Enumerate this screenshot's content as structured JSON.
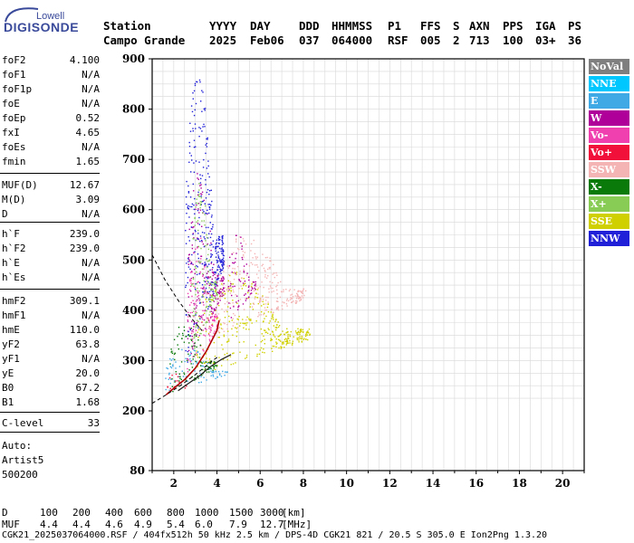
{
  "header": {
    "logo_top": "Lowell",
    "logo_main": "DIGISONDE",
    "labels": {
      "station": "Station",
      "year": "YYYY",
      "day": "DAY",
      "doy": "DDD",
      "time": "HHMMSS",
      "p1": "P1",
      "ffs": "FFS",
      "s": "S",
      "axn": "AXN",
      "pps": "PPS",
      "iga": "IGA",
      "ps": "PS"
    },
    "values": {
      "station": "Campo Grande",
      "year": "2025",
      "day": "Feb06",
      "doy": "037",
      "time": "064000",
      "p1": "RSF",
      "ffs": "005",
      "s": "2",
      "axn": "713",
      "pps": "100",
      "iga": "03+",
      "ps": "36"
    }
  },
  "params": [
    {
      "k": "foF2",
      "v": "4.100"
    },
    {
      "k": "foF1",
      "v": "N/A"
    },
    {
      "k": "foF1p",
      "v": "N/A"
    },
    {
      "k": "foE",
      "v": "N/A"
    },
    {
      "k": "foEp",
      "v": "0.52"
    },
    {
      "k": "fxI",
      "v": "4.65"
    },
    {
      "k": "foEs",
      "v": "N/A"
    },
    {
      "k": "fmin",
      "v": "1.65"
    },
    {
      "k": "MUF(D)",
      "v": "12.67"
    },
    {
      "k": "M(D)",
      "v": "3.09"
    },
    {
      "k": "D",
      "v": "N/A"
    },
    {
      "k": "h`F",
      "v": "239.0"
    },
    {
      "k": "h`F2",
      "v": "239.0"
    },
    {
      "k": "h`E",
      "v": "N/A"
    },
    {
      "k": "h`Es",
      "v": "N/A"
    },
    {
      "k": "hmF2",
      "v": "309.1"
    },
    {
      "k": "hmF1",
      "v": "N/A"
    },
    {
      "k": "hmE",
      "v": "110.0"
    },
    {
      "k": "yF2",
      "v": "63.8"
    },
    {
      "k": "yF1",
      "v": "N/A"
    },
    {
      "k": "yE",
      "v": "20.0"
    },
    {
      "k": "B0",
      "v": "67.2"
    },
    {
      "k": "B1",
      "v": "1.68"
    },
    {
      "k": "C-level",
      "v": "33"
    }
  ],
  "auto": [
    "Auto:",
    "Artist5",
    "500200"
  ],
  "legend": [
    {
      "label": "NoVal",
      "color": "#7f7f7f"
    },
    {
      "label": "NNE",
      "color": "#00c8ff"
    },
    {
      "label": "E",
      "color": "#3fa9e6"
    },
    {
      "label": "W",
      "color": "#b0009a"
    },
    {
      "label": "Vo-",
      "color": "#f040b0"
    },
    {
      "label": "Vo+",
      "color": "#f0103a"
    },
    {
      "label": "SSW",
      "color": "#f4b4b4"
    },
    {
      "label": "X-",
      "color": "#0a7a0a"
    },
    {
      "label": "X+",
      "color": "#88cc55"
    },
    {
      "label": "SSE",
      "color": "#d0d000"
    },
    {
      "label": "NNW",
      "color": "#2020d8"
    }
  ],
  "distance_table": {
    "row1_label": "D",
    "row1_values": [
      "100",
      "200",
      "400",
      "600",
      "800",
      "1000",
      "1500",
      "3000"
    ],
    "row1_unit": "[km]",
    "row2_label": "MUF",
    "row2_values": [
      "4.4",
      "4.4",
      "4.6",
      "4.9",
      "5.4",
      "6.0",
      "7.9",
      "12.7"
    ],
    "row2_unit": "[MHz]"
  },
  "footer": "CGK21_2025037064000.RSF / 404fx512h 50 kHz 2.5 km / DPS-4D CGK21 821 / 20.5 S 305.0 E Ion2Png 1.3.20",
  "chart_data": {
    "type": "scatter",
    "title": "",
    "xlabel": "",
    "ylabel": "",
    "xlim": [
      1,
      21
    ],
    "ylim": [
      80,
      900
    ],
    "x_ticks": [
      2,
      4,
      6,
      8,
      10,
      12,
      14,
      16,
      18,
      20
    ],
    "y_ticks": [
      80,
      200,
      300,
      400,
      500,
      600,
      700,
      800,
      900
    ],
    "grid": true,
    "legend_position": "right",
    "series": [
      {
        "name": "SSE",
        "color": "#d0d000",
        "regions": [
          {
            "f": [
              3.0,
              8.3
            ],
            "h": [
              270,
              480
            ]
          }
        ]
      },
      {
        "name": "SSW",
        "color": "#f4b4b4",
        "regions": [
          {
            "f": [
              4.0,
              8.1
            ],
            "h": [
              350,
              560
            ]
          }
        ]
      },
      {
        "name": "W",
        "color": "#b0009a",
        "regions": [
          {
            "f": [
              2.6,
              4.3
            ],
            "h": [
              300,
              680
            ]
          },
          {
            "f": [
              4.5,
              5.8
            ],
            "h": [
              380,
              560
            ]
          }
        ]
      },
      {
        "name": "Vo-",
        "color": "#f040b0",
        "regions": [
          {
            "f": [
              2.6,
              4.0
            ],
            "h": [
              260,
              560
            ]
          }
        ]
      },
      {
        "name": "E",
        "color": "#3fa9e6",
        "regions": [
          {
            "f": [
              1.6,
              4.5
            ],
            "h": [
              240,
              330
            ]
          }
        ]
      },
      {
        "name": "NNW",
        "color": "#2020d8",
        "regions": [
          {
            "f": [
              2.5,
              4.3
            ],
            "h": [
              280,
              880
            ]
          }
        ]
      },
      {
        "name": "X-",
        "color": "#0a7a0a",
        "regions": [
          {
            "f": [
              1.8,
              4.0
            ],
            "h": [
              235,
              380
            ]
          }
        ]
      },
      {
        "name": "X+",
        "color": "#88cc55",
        "regions": [
          {
            "f": [
              2.8,
              4.0
            ],
            "h": [
              300,
              660
            ]
          }
        ]
      },
      {
        "name": "Vo+",
        "color": "#f0103a",
        "regions": [
          {
            "f": [
              1.6,
              2.6
            ],
            "h": [
              230,
              280
            ]
          }
        ]
      }
    ],
    "trace_o": [
      [
        1.65,
        232
      ],
      [
        2.0,
        245
      ],
      [
        2.5,
        262
      ],
      [
        3.0,
        285
      ],
      [
        3.5,
        318
      ],
      [
        4.0,
        360
      ],
      [
        4.1,
        380
      ]
    ],
    "trace_x": [
      [
        2.2,
        240
      ],
      [
        2.7,
        255
      ],
      [
        3.2,
        270
      ],
      [
        3.7,
        288
      ],
      [
        4.2,
        302
      ],
      [
        4.65,
        312
      ]
    ],
    "profile": [
      [
        1.0,
        215
      ],
      [
        1.65,
        232
      ],
      [
        2.3,
        250
      ],
      [
        3.0,
        272
      ],
      [
        3.8,
        300
      ],
      [
        4.1,
        309
      ]
    ],
    "profile_dashed": [
      [
        1.0,
        510
      ],
      [
        1.6,
        460
      ],
      [
        2.2,
        420
      ],
      [
        2.8,
        385
      ],
      [
        3.3,
        360
      ]
    ]
  }
}
